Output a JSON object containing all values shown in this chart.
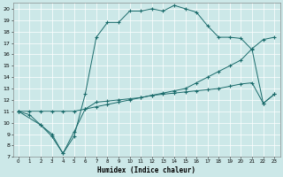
{
  "xlabel": "Humidex (Indice chaleur)",
  "background_color": "#cce8e8",
  "line_color": "#1a6b6b",
  "xlim": [
    -0.5,
    23.5
  ],
  "ylim": [
    7,
    20.5
  ],
  "xticks": [
    0,
    1,
    2,
    3,
    4,
    5,
    6,
    7,
    8,
    9,
    10,
    11,
    12,
    13,
    14,
    15,
    16,
    17,
    18,
    19,
    20,
    21,
    22,
    23
  ],
  "yticks": [
    7,
    8,
    9,
    10,
    11,
    12,
    13,
    14,
    15,
    16,
    17,
    18,
    19,
    20
  ],
  "line1_x": [
    0,
    1,
    2,
    3,
    4,
    5,
    6,
    7,
    8,
    9,
    10,
    11,
    12,
    13,
    14,
    15,
    16,
    17,
    18,
    19,
    20,
    21,
    22,
    23
  ],
  "line1_y": [
    11.0,
    10.7,
    9.8,
    9.0,
    7.3,
    9.2,
    11.2,
    11.8,
    11.9,
    12.0,
    12.1,
    12.2,
    12.4,
    12.5,
    12.6,
    12.7,
    12.8,
    12.9,
    13.0,
    13.2,
    13.4,
    13.5,
    11.7,
    12.5
  ],
  "line2_x": [
    0,
    1,
    2,
    3,
    4,
    5,
    6,
    7,
    8,
    9,
    10,
    11,
    12,
    13,
    14,
    15,
    16,
    17,
    18,
    19,
    20,
    21,
    22,
    23
  ],
  "line2_y": [
    11.0,
    11.0,
    11.0,
    11.0,
    11.0,
    11.0,
    11.2,
    11.4,
    11.6,
    11.8,
    12.0,
    12.2,
    12.4,
    12.6,
    12.8,
    13.0,
    13.5,
    14.0,
    14.5,
    15.0,
    15.5,
    16.5,
    17.3,
    17.5
  ],
  "line3_x": [
    0,
    2,
    3,
    4,
    5,
    6,
    7,
    8,
    9,
    10,
    11,
    12,
    13,
    14,
    15,
    16,
    17,
    18,
    19,
    20,
    21,
    22,
    23
  ],
  "line3_y": [
    11.0,
    9.8,
    8.8,
    7.3,
    8.8,
    12.5,
    17.5,
    18.8,
    18.8,
    19.8,
    19.8,
    20.0,
    19.8,
    20.3,
    20.0,
    19.7,
    18.5,
    17.5,
    17.5,
    17.4,
    16.4,
    11.7,
    12.5
  ]
}
